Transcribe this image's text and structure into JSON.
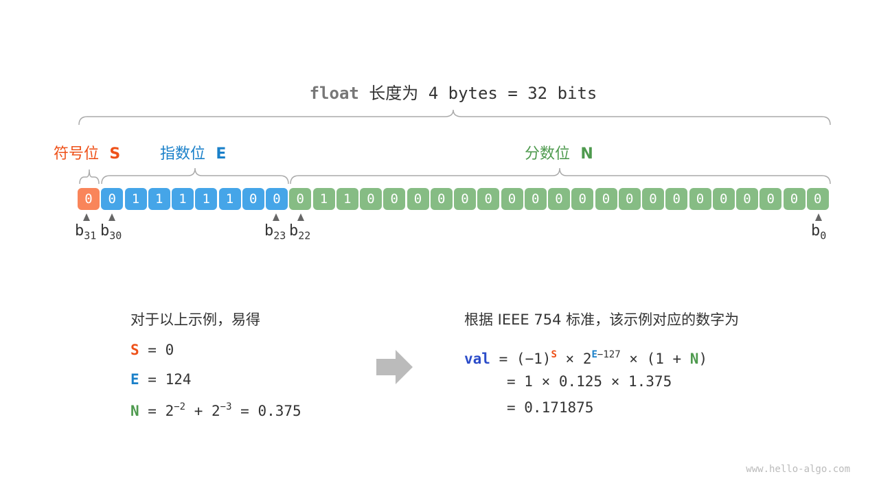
{
  "title": {
    "keyword": "float",
    "rest": " 长度为 4 bytes = 32 bits"
  },
  "labels": {
    "sign": {
      "text": "符号位",
      "sym": "S"
    },
    "exponent": {
      "text": "指数位",
      "sym": "E"
    },
    "fraction": {
      "text": "分数位",
      "sym": "N"
    }
  },
  "bits": {
    "sign": [
      "0"
    ],
    "exponent": [
      "0",
      "1",
      "1",
      "1",
      "1",
      "1",
      "0",
      "0"
    ],
    "fraction": [
      "0",
      "1",
      "1",
      "0",
      "0",
      "0",
      "0",
      "0",
      "0",
      "0",
      "0",
      "0",
      "0",
      "0",
      "0",
      "0",
      "0",
      "0",
      "0",
      "0",
      "0",
      "0",
      "0"
    ]
  },
  "bit_labels": {
    "b31": "31",
    "b30": "30",
    "b23": "23",
    "b22": "22",
    "b0": "0",
    "b": "b"
  },
  "colors": {
    "sign": "#f9855a",
    "exponent": "#45a5e8",
    "fraction": "#86bc84",
    "sign_text": "#ee5119",
    "exponent_text": "#1a80c9",
    "fraction_text": "#4e9a4e"
  },
  "left": {
    "heading": "对于以上示例，易得",
    "s_line": {
      "sym": "S",
      "rest": " = 0"
    },
    "e_line": {
      "sym": "E",
      "rest": " = 124"
    },
    "n_line": {
      "sym": "N",
      "eq": " = 2",
      "exp1": "−2",
      "plus": " + 2",
      "exp2": "−3",
      "rest": " = 0.375"
    }
  },
  "right": {
    "heading": "根据 IEEE 754 标准，该示例对应的数字为",
    "val": "val",
    "line1": {
      "a": " = (−1)",
      "s": "S",
      "b": " × 2",
      "e": "E",
      "e_rest": "−127",
      "c": " × (1 + ",
      "n": "N",
      "d": ")"
    },
    "line2": "= 1 × 0.125 × 1.375",
    "line3": "= 0.171875"
  },
  "watermark": "www.hello-algo.com"
}
